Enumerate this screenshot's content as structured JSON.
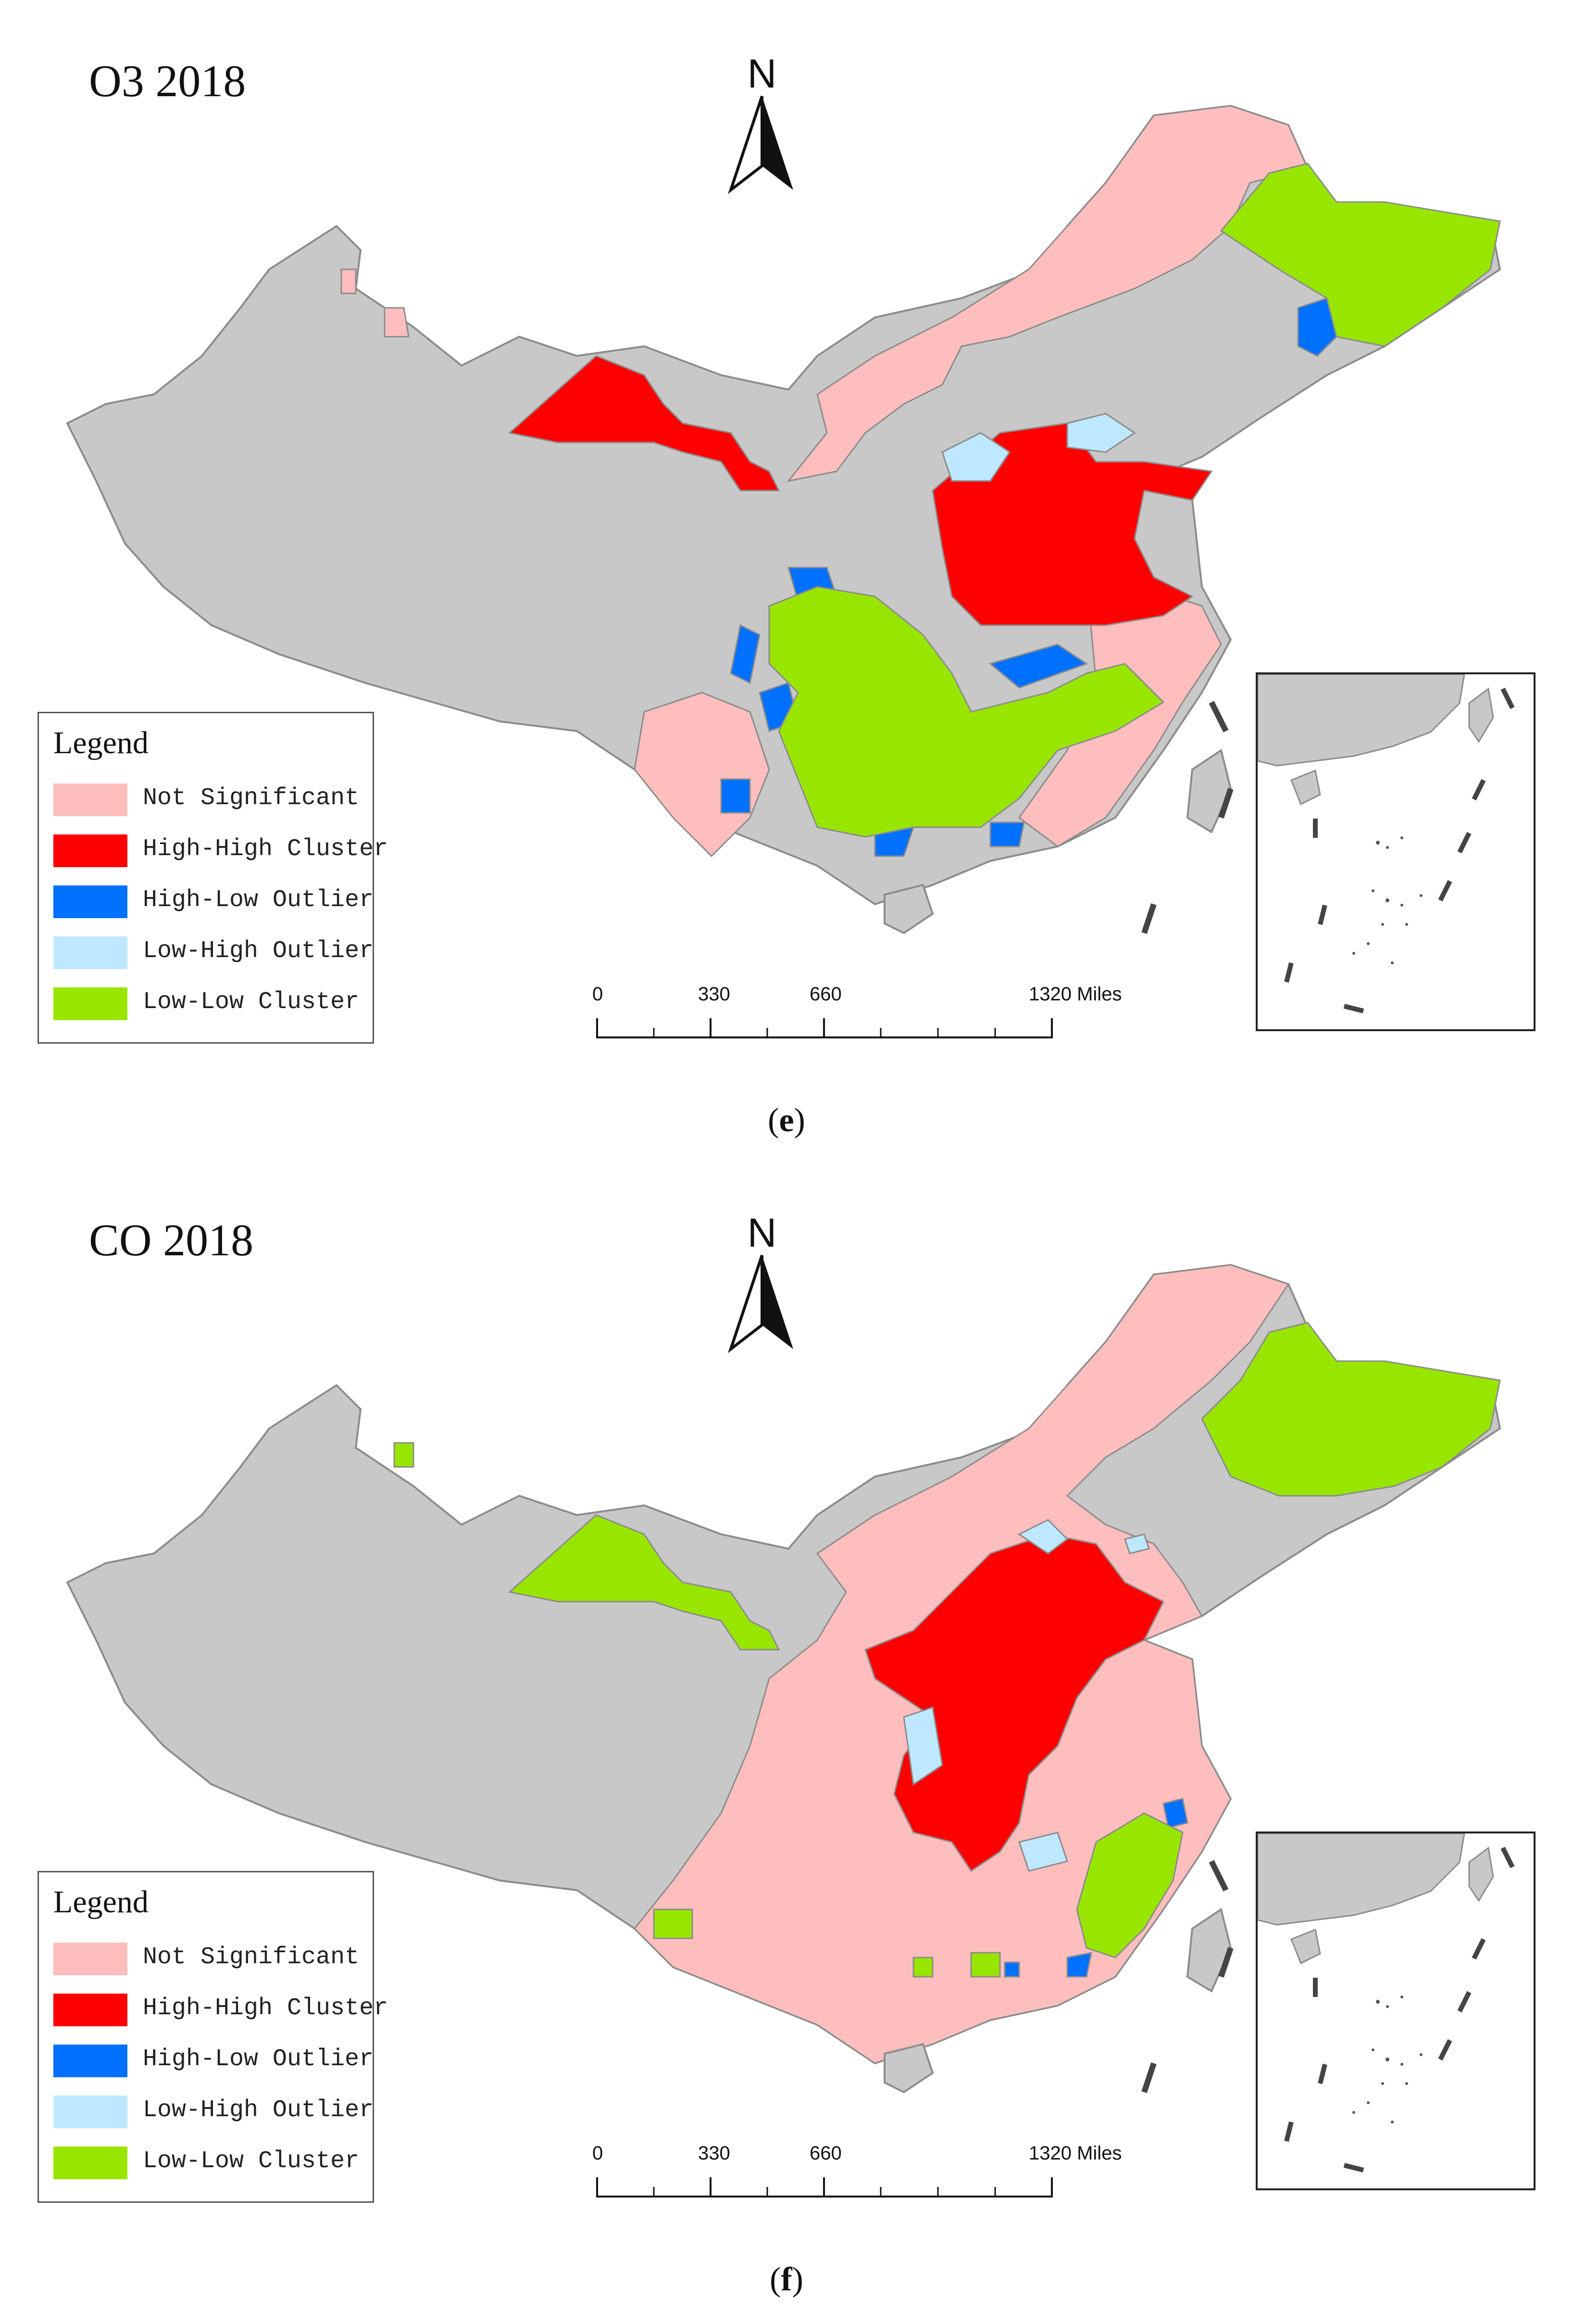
{
  "panels": [
    {
      "title": "O3 2018",
      "caption_letter": "e",
      "north_label": "N",
      "legend": {
        "title": "Legend",
        "items": [
          {
            "label": "Not Significant",
            "color": "#FFBEBE"
          },
          {
            "label": "High-High Cluster",
            "color": "#FF0000"
          },
          {
            "label": "High-Low Outlier",
            "color": "#0070FF"
          },
          {
            "label": "Low-High Outlier",
            "color": "#BEE8FF"
          },
          {
            "label": "Low-Low Cluster",
            "color": "#98E600"
          }
        ]
      },
      "scale": {
        "ticks": [
          "0",
          "330",
          "660",
          "1320 Miles"
        ]
      }
    },
    {
      "title": "CO 2018",
      "caption_letter": "f",
      "north_label": "N",
      "legend": {
        "title": "Legend",
        "items": [
          {
            "label": "Not Significant",
            "color": "#FFBEBE"
          },
          {
            "label": "High-High Cluster",
            "color": "#FF0000"
          },
          {
            "label": "High-Low Outlier",
            "color": "#0070FF"
          },
          {
            "label": "Low-High Outlier",
            "color": "#BEE8FF"
          },
          {
            "label": "Low-Low Cluster",
            "color": "#98E600"
          }
        ]
      },
      "scale": {
        "ticks": [
          "0",
          "330",
          "660",
          "1320 Miles"
        ]
      }
    }
  ],
  "colors": {
    "base_land": "#C8C8C8",
    "boundary": "#8C8C8C"
  }
}
